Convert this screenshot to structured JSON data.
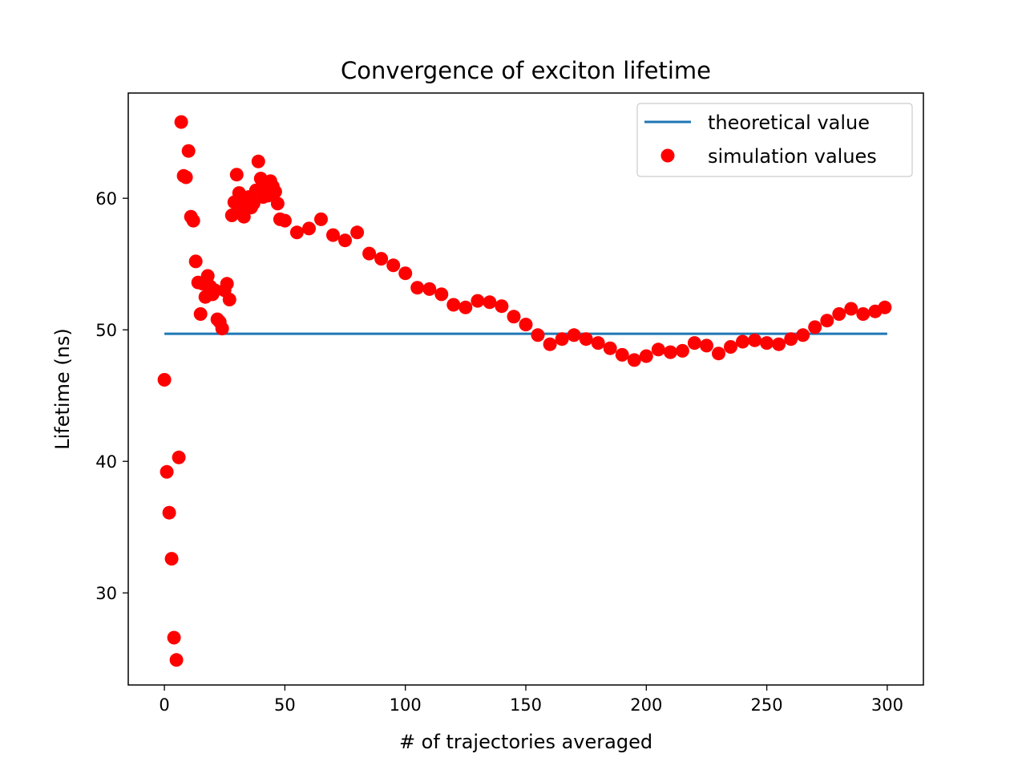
{
  "chart_data": {
    "type": "scatter",
    "title": "Convergence of exciton lifetime",
    "xlabel": "# of trajectories averaged",
    "ylabel": "Lifetime (ns)",
    "xlim": [
      -15,
      315
    ],
    "ylim": [
      23,
      68
    ],
    "xticks": [
      0,
      50,
      100,
      150,
      200,
      250,
      300
    ],
    "yticks": [
      30,
      40,
      50,
      60
    ],
    "grid": false,
    "legend_placement": "top-right",
    "series": [
      {
        "name": "theoretical value",
        "kind": "line",
        "color": "#1f77b4",
        "x": [
          0,
          300
        ],
        "y": [
          49.7,
          49.7
        ]
      },
      {
        "name": "simulation values",
        "kind": "scatter",
        "color": "#ff0000",
        "x": [
          0,
          1,
          2,
          3,
          4,
          5,
          6,
          7,
          8,
          9,
          10,
          11,
          12,
          13,
          14,
          15,
          16,
          17,
          18,
          19,
          20,
          21,
          22,
          23,
          24,
          25,
          26,
          27,
          28,
          29,
          30,
          31,
          32,
          33,
          34,
          35,
          36,
          37,
          38,
          39,
          40,
          41,
          42,
          43,
          44,
          45,
          46,
          47,
          48,
          50,
          55,
          60,
          65,
          70,
          75,
          80,
          85,
          90,
          95,
          100,
          105,
          110,
          115,
          120,
          125,
          130,
          135,
          140,
          145,
          150,
          155,
          160,
          165,
          170,
          175,
          180,
          185,
          190,
          195,
          200,
          205,
          210,
          215,
          220,
          225,
          230,
          235,
          240,
          245,
          250,
          255,
          260,
          265,
          270,
          275,
          280,
          285,
          290,
          295,
          299
        ],
        "y": [
          46.2,
          39.2,
          36.1,
          32.6,
          26.6,
          24.9,
          40.3,
          65.8,
          61.7,
          61.6,
          63.6,
          58.6,
          58.3,
          55.2,
          53.6,
          51.2,
          53.5,
          52.5,
          54.1,
          53.3,
          52.7,
          53.0,
          50.8,
          50.6,
          50.1,
          53.0,
          53.5,
          52.3,
          58.7,
          59.7,
          61.8,
          60.4,
          59.1,
          58.6,
          59.8,
          60.1,
          59.3,
          59.6,
          60.6,
          62.8,
          61.5,
          60.1,
          60.7,
          60.2,
          61.3,
          60.9,
          60.5,
          59.6,
          58.4,
          58.3,
          57.4,
          57.7,
          58.4,
          57.2,
          56.8,
          57.4,
          55.8,
          55.4,
          54.9,
          54.3,
          53.2,
          53.1,
          52.7,
          51.9,
          51.7,
          52.2,
          52.1,
          51.8,
          51.0,
          50.4,
          49.6,
          48.9,
          49.3,
          49.6,
          49.3,
          49.0,
          48.6,
          48.1,
          47.7,
          48.0,
          48.5,
          48.3,
          48.4,
          49.0,
          48.8,
          48.2,
          48.7,
          49.1,
          49.2,
          49.0,
          48.9,
          49.3,
          49.6,
          50.2,
          50.7,
          51.2,
          51.6,
          51.2,
          51.4,
          51.7
        ]
      }
    ]
  }
}
